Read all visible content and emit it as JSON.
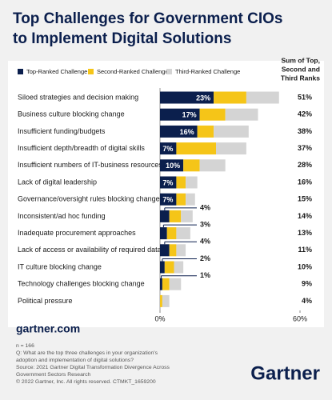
{
  "chart_data": {
    "type": "stacked-barh",
    "title": [
      "Top Challenges for Government CIOs",
      "to Implement Digital Solutions"
    ],
    "categories": [
      "Siloed strategies and decision making",
      "Business culture blocking change",
      "Insufficient funding/budgets",
      "Insufficient depth/breadth of digital skills",
      "Insufficient numbers of IT-business resources",
      "Lack of digital leadership",
      "Governance/oversight rules blocking change",
      "Inconsistent/ad hoc funding",
      "Inadequate procurement approaches",
      "Lack of access or availability of required data",
      "IT culture blocking change",
      "Technology challenges blocking change",
      "Political pressure"
    ],
    "series": [
      {
        "name": "Top-Ranked Challenge",
        "color": "#0b1f4d",
        "values": [
          23,
          17,
          16,
          7,
          10,
          7,
          7,
          4,
          3,
          4,
          2,
          1,
          0
        ],
        "value_labels": [
          "23%",
          "17%",
          "16%",
          "7%",
          "10%",
          "7%",
          "7%",
          "4%",
          "3%",
          "4%",
          "2%",
          "1%",
          null
        ]
      },
      {
        "name": "Second-Ranked Challenge",
        "color": "#f5c518",
        "values": [
          14,
          11,
          7,
          17,
          7,
          4,
          4,
          5,
          4,
          3,
          4,
          3,
          1
        ]
      },
      {
        "name": "Third-Ranked Challenge",
        "color": "#d4d4d4",
        "values": [
          14,
          14,
          15,
          13,
          11,
          5,
          4,
          5,
          6,
          4,
          4,
          5,
          3
        ]
      }
    ],
    "totals_header": [
      "Sum of Top,",
      "Second and",
      "Third Ranks"
    ],
    "totals": [
      51,
      42,
      38,
      37,
      28,
      16,
      15,
      14,
      13,
      11,
      10,
      9,
      4
    ],
    "totals_labels": [
      "51%",
      "42%",
      "38%",
      "37%",
      "28%",
      "16%",
      "15%",
      "14%",
      "13%",
      "11%",
      "10%",
      "9%",
      "4%"
    ],
    "xlim": [
      0,
      60
    ],
    "xticks": [
      {
        "value": 0,
        "label": "0%"
      },
      {
        "value": 60,
        "label": "60%"
      }
    ],
    "site": "gartner.com",
    "notes": [
      "n = 166",
      "Q: What are the top three challenges in your organization's",
      "adoption and implementation of digital solutions?",
      "Source: 2021 Gartner Digital Transformation Divergence Across",
      "Government Sectors Research",
      "© 2022 Gartner, Inc. All rights reserved. CTMKT_1659200"
    ],
    "logo": "Gartner"
  }
}
